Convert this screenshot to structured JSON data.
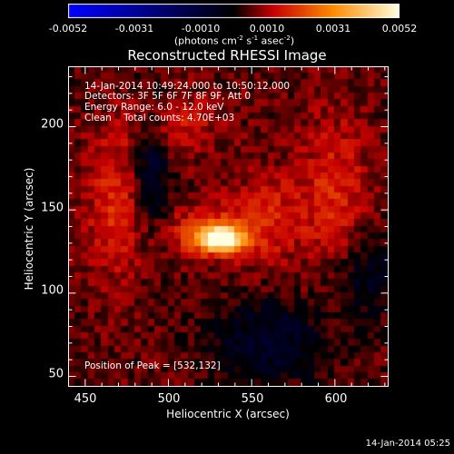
{
  "colorbar": {
    "ticks": [
      "-0.0052",
      "-0.0031",
      "-0.0010",
      "0.0010",
      "0.0031",
      "0.0052"
    ],
    "unit_prefix": "(photons cm",
    "unit_exp1": "-2",
    "unit_mid": " s",
    "unit_exp2": "-1",
    "unit_mid2": " asec",
    "unit_exp3": "-2",
    "unit_suffix": ")"
  },
  "title": "Reconstructed RHESSI Image",
  "annotations": {
    "time_range": "14-Jan-2014 10:49:24.000 to 10:50:12.000",
    "detectors": "Detectors: 3F 5F 6F 7F 8F 9F, Att 0",
    "energy": "Energy Range: 6.0 - 12.0 keV",
    "clean": "Clean    Total counts: 4.70E+03",
    "peak": "Position of Peak = [532,132]"
  },
  "axes": {
    "xlabel": "Heliocentric X (arcsec)",
    "ylabel": "Heliocentric Y (arcsec)",
    "xticks": [
      "450",
      "500",
      "550",
      "600"
    ],
    "yticks": [
      "200",
      "150",
      "100",
      "50"
    ]
  },
  "chart_data": {
    "type": "heatmap",
    "title": "Reconstructed RHESSI Image",
    "xlabel": "Heliocentric X (arcsec)",
    "ylabel": "Heliocentric Y (arcsec)",
    "xlim": [
      440,
      632
    ],
    "ylim": [
      44,
      236
    ],
    "xticks": [
      450,
      500,
      550,
      600
    ],
    "yticks": [
      50,
      100,
      150,
      200
    ],
    "value_range": [
      -0.0052,
      0.0052
    ],
    "peak": {
      "x": 532,
      "y": 132
    },
    "colormap": [
      "#0000ff",
      "#000000",
      "#c80000",
      "#ff8c00",
      "#ffffe0"
    ]
  },
  "timestamp": "14-Jan-2014 05:25"
}
